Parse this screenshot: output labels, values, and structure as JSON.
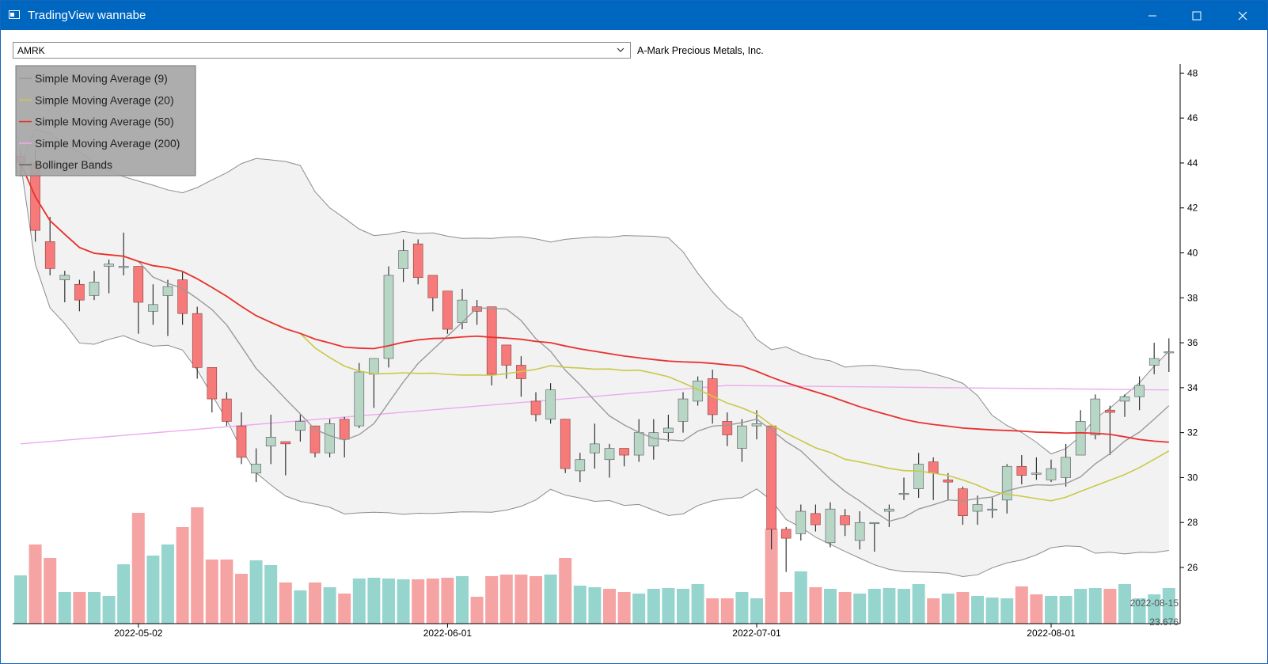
{
  "window": {
    "title": "TradingView wannabe"
  },
  "toolbar": {
    "symbol": "AMRK",
    "company_name": "A-Mark Precious Metals, Inc."
  },
  "colors": {
    "titlebar": "#0067c0",
    "up": "#b7d6c4",
    "down": "#f77a7a",
    "vol_up": "#96d4ce",
    "vol_down": "#f6a3a3",
    "sma9": "#9a9a9a",
    "sma20": "#c9c94a",
    "sma50": "#e8312f",
    "sma200": "#eeaaee",
    "bands": "#f2f2f2"
  },
  "chart_data": {
    "type": "candlestick",
    "legend": [
      "Simple Moving Average (9)",
      "Simple Moving Average (20)",
      "Simple Moving Average (50)",
      "Simple Moving Average (200)",
      "Bollinger Bands"
    ],
    "legend_position": "top-left",
    "ylim": [
      23.5,
      48.4
    ],
    "y_ticks": [
      "26",
      "28",
      "30",
      "32",
      "34",
      "36",
      "38",
      "40",
      "42",
      "44",
      "46",
      "48"
    ],
    "x_ticks": [
      {
        "label": "2022-05-02",
        "index": 8
      },
      {
        "label": "2022-06-01",
        "index": 29
      },
      {
        "label": "2022-07-01",
        "index": 50
      },
      {
        "label": "2022-08-01",
        "index": 70
      }
    ],
    "crosshair": {
      "date": "2022-08-15",
      "value": "23.676"
    },
    "candles": [
      [
        44.3,
        44.6,
        43.4,
        44.0
      ],
      [
        44.0,
        44.6,
        40.5,
        41.0
      ],
      [
        40.5,
        41.6,
        39.0,
        39.3
      ],
      [
        38.8,
        39.2,
        37.8,
        39.0
      ],
      [
        38.6,
        38.8,
        37.4,
        37.9
      ],
      [
        38.1,
        39.2,
        37.9,
        38.7
      ],
      [
        39.4,
        39.7,
        38.2,
        39.5
      ],
      [
        39.4,
        40.9,
        39.0,
        39.4
      ],
      [
        39.4,
        39.4,
        36.4,
        37.8
      ],
      [
        37.4,
        38.6,
        36.8,
        37.7
      ],
      [
        38.1,
        38.8,
        36.3,
        38.5
      ],
      [
        38.8,
        39.2,
        36.8,
        37.3
      ],
      [
        37.3,
        37.6,
        34.4,
        34.9
      ],
      [
        34.9,
        34.9,
        32.9,
        33.5
      ],
      [
        33.5,
        33.8,
        32.3,
        32.5
      ],
      [
        32.3,
        32.9,
        30.6,
        30.9
      ],
      [
        30.2,
        31.3,
        29.8,
        30.6
      ],
      [
        31.4,
        32.8,
        30.6,
        31.8
      ],
      [
        31.6,
        31.6,
        30.1,
        31.5
      ],
      [
        32.1,
        32.8,
        31.6,
        32.5
      ],
      [
        32.3,
        32.3,
        30.9,
        31.1
      ],
      [
        31.1,
        32.6,
        30.9,
        32.4
      ],
      [
        32.6,
        32.7,
        30.9,
        31.7
      ],
      [
        32.3,
        35.1,
        32.2,
        34.7
      ],
      [
        34.6,
        35.3,
        33.1,
        35.3
      ],
      [
        35.3,
        39.4,
        34.9,
        39.0
      ],
      [
        39.3,
        40.6,
        38.7,
        40.1
      ],
      [
        40.4,
        40.6,
        38.6,
        38.9
      ],
      [
        39.0,
        39.0,
        37.4,
        38.0
      ],
      [
        38.3,
        38.3,
        36.4,
        36.6
      ],
      [
        36.9,
        38.4,
        36.6,
        37.9
      ],
      [
        37.6,
        37.9,
        36.8,
        37.4
      ],
      [
        37.6,
        37.6,
        34.1,
        34.6
      ],
      [
        35.9,
        35.9,
        34.4,
        35.0
      ],
      [
        35.0,
        35.4,
        33.6,
        34.4
      ],
      [
        33.4,
        33.8,
        32.5,
        32.8
      ],
      [
        32.6,
        34.2,
        32.4,
        33.9
      ],
      [
        32.6,
        32.6,
        30.2,
        30.4
      ],
      [
        30.3,
        31.1,
        29.8,
        30.8
      ],
      [
        31.1,
        32.4,
        30.4,
        31.5
      ],
      [
        30.8,
        31.5,
        30.0,
        31.3
      ],
      [
        31.3,
        31.3,
        30.5,
        31.0
      ],
      [
        31.0,
        32.6,
        30.7,
        32.0
      ],
      [
        31.4,
        32.6,
        30.8,
        32.0
      ],
      [
        32.0,
        32.8,
        31.6,
        32.2
      ],
      [
        32.5,
        33.8,
        32.0,
        33.5
      ],
      [
        33.4,
        34.5,
        33.2,
        34.3
      ],
      [
        34.4,
        34.8,
        32.4,
        32.8
      ],
      [
        32.5,
        32.9,
        31.4,
        31.9
      ],
      [
        31.3,
        32.6,
        30.7,
        32.3
      ],
      [
        32.3,
        33.0,
        31.7,
        32.4
      ],
      [
        32.3,
        32.3,
        26.8,
        27.7
      ],
      [
        27.7,
        27.8,
        25.8,
        27.3
      ],
      [
        27.5,
        28.8,
        27.2,
        28.5
      ],
      [
        28.4,
        28.8,
        27.6,
        27.9
      ],
      [
        27.1,
        28.9,
        26.9,
        28.6
      ],
      [
        28.3,
        28.6,
        27.4,
        27.9
      ],
      [
        27.2,
        28.5,
        26.8,
        28.0
      ],
      [
        28.0,
        28.0,
        26.7,
        28.0
      ],
      [
        28.5,
        28.8,
        27.8,
        28.6
      ],
      [
        29.3,
        30.0,
        29.0,
        29.3
      ],
      [
        29.5,
        31.1,
        29.1,
        30.6
      ],
      [
        30.7,
        30.9,
        29.0,
        30.2
      ],
      [
        29.9,
        30.2,
        29.0,
        29.8
      ],
      [
        29.5,
        29.6,
        27.9,
        28.3
      ],
      [
        28.5,
        29.2,
        27.9,
        28.8
      ],
      [
        28.6,
        29.1,
        28.2,
        28.6
      ],
      [
        29.0,
        30.6,
        28.4,
        30.5
      ],
      [
        30.5,
        31.0,
        29.7,
        30.1
      ],
      [
        30.2,
        30.9,
        29.9,
        30.2
      ],
      [
        29.9,
        30.8,
        29.8,
        30.4
      ],
      [
        30.0,
        31.5,
        29.6,
        30.9
      ],
      [
        31.0,
        33.0,
        31.0,
        32.5
      ],
      [
        31.9,
        33.7,
        31.7,
        33.5
      ],
      [
        33.0,
        33.2,
        31.0,
        32.9
      ],
      [
        33.4,
        33.7,
        32.7,
        33.6
      ],
      [
        33.6,
        34.5,
        33.0,
        34.1
      ],
      [
        35.0,
        36.0,
        34.6,
        35.3
      ],
      [
        35.6,
        36.2,
        34.7,
        35.6
      ]
    ],
    "volume_up": [
      1,
      0,
      0,
      1,
      0,
      1,
      1,
      1,
      0,
      1,
      1,
      0,
      0,
      0,
      0,
      0,
      1,
      1,
      0,
      1,
      0,
      1,
      0,
      1,
      1,
      1,
      1,
      0,
      0,
      0,
      1,
      0,
      0,
      0,
      0,
      0,
      1,
      0,
      1,
      1,
      0,
      0,
      1,
      1,
      1,
      1,
      1,
      0,
      0,
      1,
      1,
      0,
      0,
      1,
      0,
      1,
      0,
      1,
      1,
      1,
      1,
      1,
      0,
      1,
      0,
      1,
      1,
      1,
      0,
      0,
      1,
      1,
      1,
      1,
      0,
      1,
      1,
      1,
      1
    ],
    "volume": [
      61,
      100,
      83,
      40,
      40,
      40,
      35,
      75,
      140,
      86,
      100,
      122,
      147,
      81,
      81,
      63,
      80,
      74,
      52,
      42,
      52,
      46,
      38,
      57,
      58,
      57,
      56,
      56,
      57,
      58,
      60,
      34,
      60,
      62,
      62,
      60,
      62,
      83,
      48,
      46,
      44,
      40,
      38,
      44,
      45,
      44,
      50,
      32,
      32,
      40,
      32,
      120,
      40,
      66,
      46,
      44,
      40,
      38,
      44,
      45,
      44,
      50,
      32,
      38,
      40,
      35,
      33,
      32,
      47,
      37,
      35,
      35,
      44,
      45,
      44,
      50,
      32,
      37,
      45
    ]
  }
}
